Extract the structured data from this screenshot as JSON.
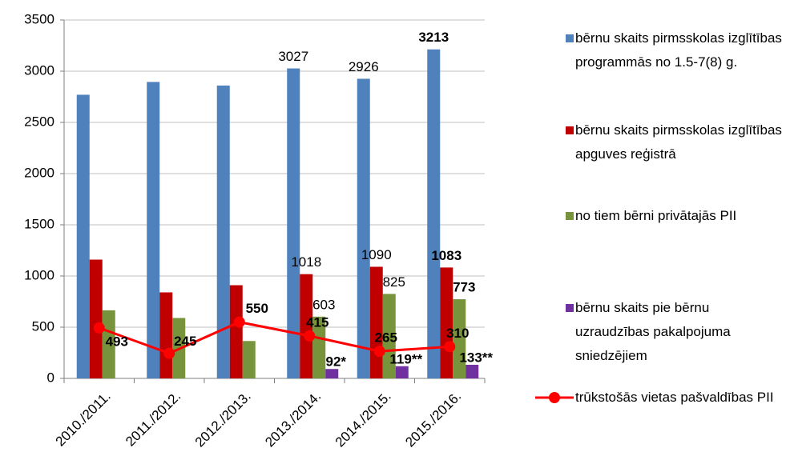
{
  "chart_data": {
    "type": "bar",
    "categories": [
      "2010./2011.",
      "2011./2012.",
      "2012./2013.",
      "2013./2014.",
      "2014./2015.",
      "2015./2016."
    ],
    "series": [
      {
        "name": "bērnu skaits pirmsskolas izglītības programmās no 1.5-7(8) g.",
        "color": "#4f81bd",
        "label_color": "#1f3864",
        "values": [
          2770,
          2895,
          2860,
          3027,
          2926,
          3213
        ],
        "value_labels": [
          null,
          null,
          null,
          "3027",
          "2926",
          "3213"
        ]
      },
      {
        "name": "bērnu skaits pirmsskolas izglītības apguves reģistrā",
        "color": "#c00000",
        "label_color": "#c00000",
        "values": [
          1160,
          840,
          910,
          1018,
          1090,
          1083
        ],
        "value_labels": [
          null,
          null,
          null,
          "1018",
          "1090",
          "1083"
        ]
      },
      {
        "name": "no tiem bērni privātajās PII",
        "color": "#77933c",
        "label_color": "#4f6228",
        "values": [
          665,
          590,
          365,
          603,
          825,
          773
        ],
        "value_labels": [
          null,
          null,
          null,
          "603",
          "825",
          "773"
        ]
      },
      {
        "name": "bērnu skaits pie bērnu uzraudzības pakalpojuma sniedzējiem",
        "color": "#7030a0",
        "label_color": "#7030a0",
        "values": [
          null,
          null,
          null,
          92,
          119,
          133
        ],
        "value_labels": [
          null,
          null,
          null,
          "92*",
          "119**",
          "133**"
        ]
      },
      {
        "name": "trūkstošās vietas pašvaldības PII",
        "type": "line",
        "color": "#ff0000",
        "label_color": "#000000",
        "values": [
          493,
          245,
          550,
          415,
          265,
          310
        ],
        "value_labels": [
          "493",
          "245",
          "550",
          "415",
          "265",
          "310"
        ]
      }
    ],
    "ylim": [
      0,
      3500
    ],
    "yticks": [
      0,
      500,
      1000,
      1500,
      2000,
      2500,
      3000,
      3500
    ],
    "grid": true
  }
}
